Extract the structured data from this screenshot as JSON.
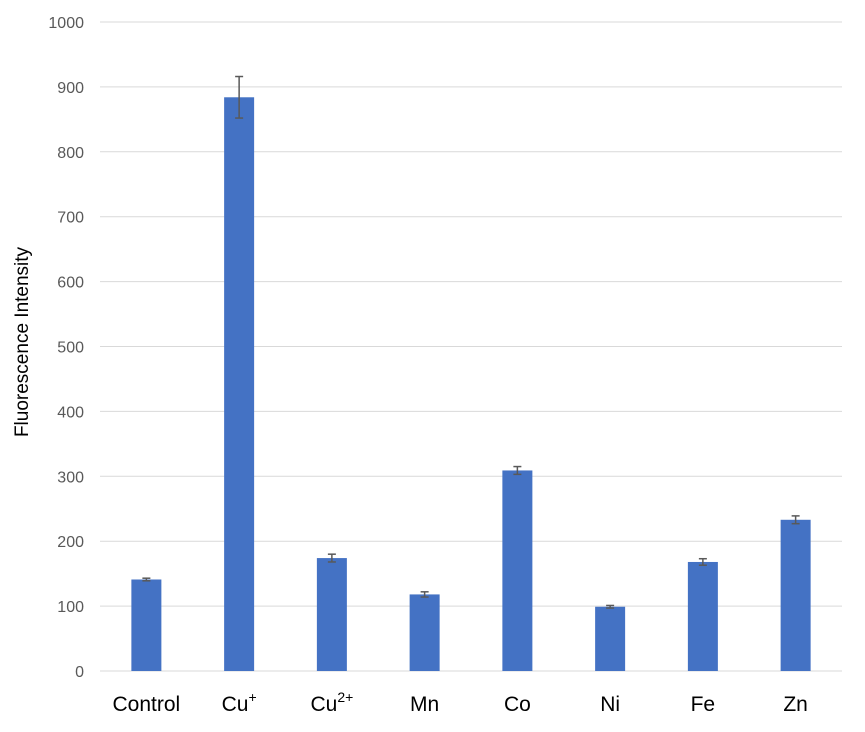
{
  "chart_data": {
    "type": "bar",
    "title": "",
    "xlabel": "",
    "ylabel": "Fluorescence Intensity",
    "ylim": [
      0,
      1000
    ],
    "yticks": [
      0,
      100,
      200,
      300,
      400,
      500,
      600,
      700,
      800,
      900,
      1000
    ],
    "grid": true,
    "categories": [
      {
        "base": "Control",
        "sup": ""
      },
      {
        "base": "Cu",
        "sup": "+"
      },
      {
        "base": "Cu",
        "sup": "2+"
      },
      {
        "base": "Mn",
        "sup": ""
      },
      {
        "base": "Co",
        "sup": ""
      },
      {
        "base": "Ni",
        "sup": ""
      },
      {
        "base": "Fe",
        "sup": ""
      },
      {
        "base": "Zn",
        "sup": ""
      }
    ],
    "values": [
      141,
      884,
      174,
      118,
      309,
      99,
      168,
      233
    ],
    "errors": [
      2,
      32,
      6,
      4,
      6,
      2,
      5,
      6
    ],
    "colors": {
      "bar": "#4472C4",
      "grid": "#D9D9D9",
      "error": "#595959"
    }
  }
}
